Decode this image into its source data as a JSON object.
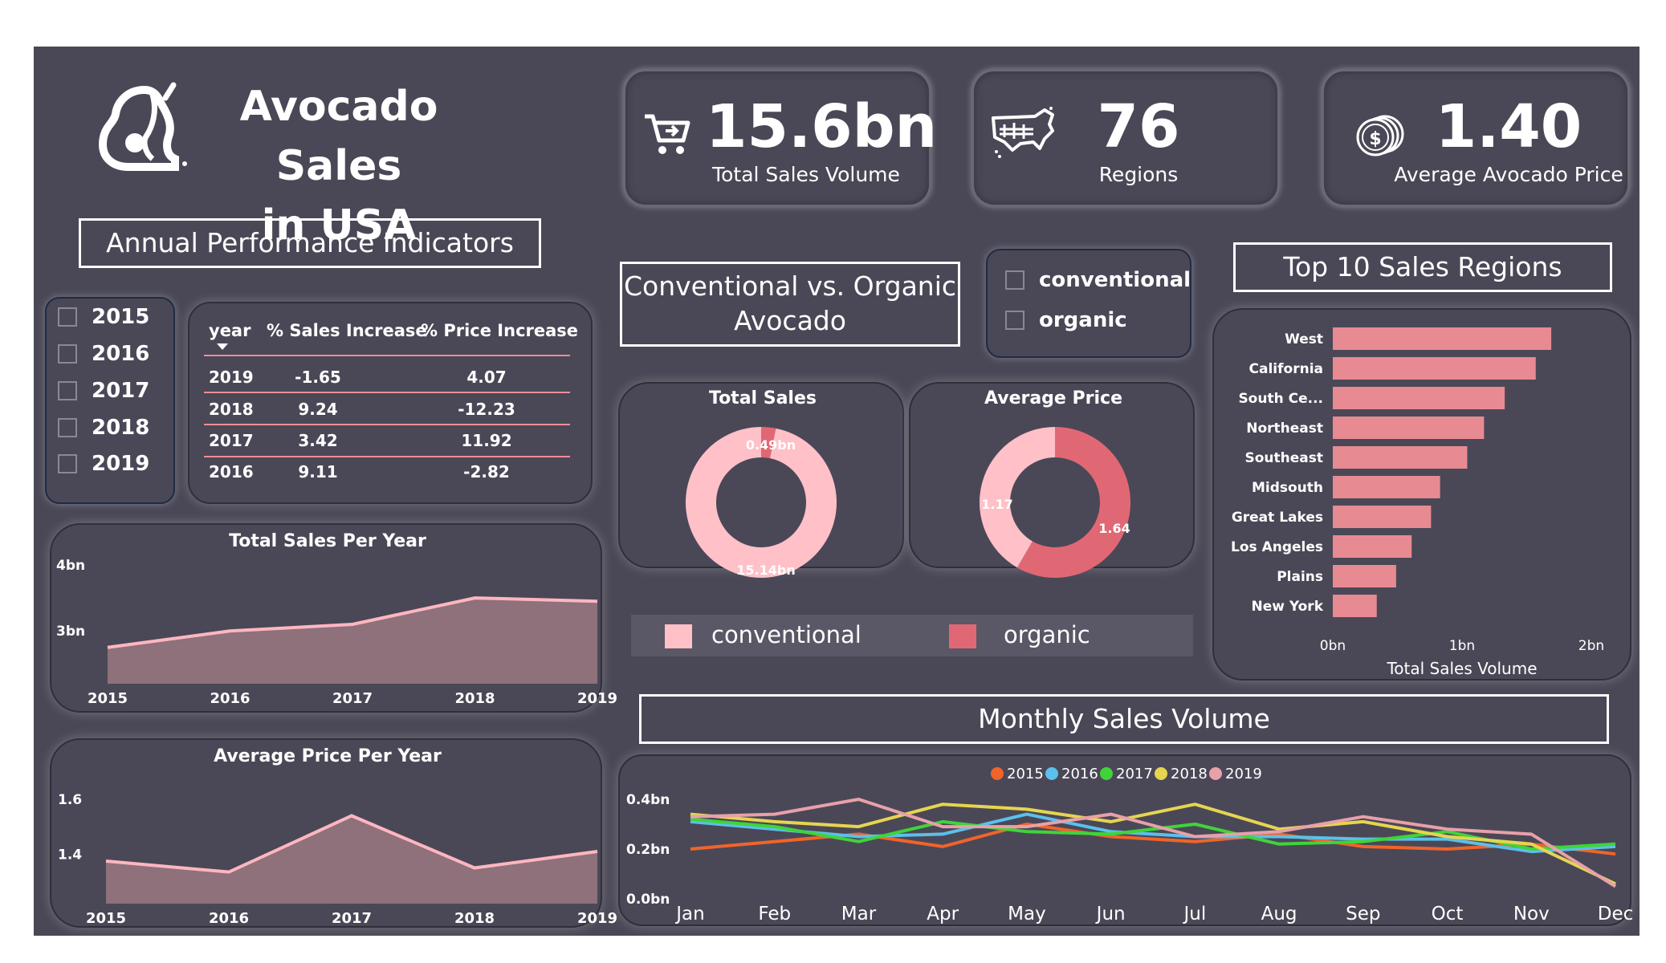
{
  "header": {
    "title_line1": "Avocado Sales",
    "title_line2": "in USA",
    "logo_icon": "avocado-icon"
  },
  "kpis": [
    {
      "value": "15.6bn",
      "label": "Total Sales Volume",
      "icon": "cart-icon"
    },
    {
      "value": "76",
      "label": "Regions",
      "icon": "usa-map-icon"
    },
    {
      "value": "1.40",
      "label": "Average Avocado Price",
      "icon": "coins-icon"
    }
  ],
  "section_titles": {
    "annual": "Annual Performance Indicators",
    "conv_org_1": "Conventional vs. Organic",
    "conv_org_2": "Avocado",
    "top10": "Top 10 Sales Regions",
    "monthly": "Monthly Sales Volume"
  },
  "year_slicer": [
    "2015",
    "2016",
    "2017",
    "2018",
    "2019"
  ],
  "type_slicer": [
    "conventional",
    "organic"
  ],
  "table": {
    "headers": [
      "year",
      "% Sales Increase",
      "% Price Increase"
    ],
    "rows": [
      [
        "2019",
        "-1.65",
        "4.07"
      ],
      [
        "2018",
        "9.24",
        "-12.23"
      ],
      [
        "2017",
        "3.42",
        "11.92"
      ],
      [
        "2016",
        "9.11",
        "-2.82"
      ]
    ]
  },
  "colors": {
    "conventional": "#ffc0c8",
    "organic": "#e06874",
    "area_fill": "#8e717a",
    "area_line": "#ffb6c1",
    "bar": "#e88a92",
    "background": "#4a4856"
  },
  "donut_legend": [
    "conventional",
    "organic"
  ],
  "chart_data": [
    {
      "id": "total-sales-per-year",
      "type": "area",
      "title": "Total Sales Per Year",
      "x": [
        "2015",
        "2016",
        "2017",
        "2018",
        "2019"
      ],
      "values": [
        2.75,
        3.0,
        3.1,
        3.5,
        3.45
      ],
      "ylim": [
        2.2,
        4.0
      ],
      "yticks": [
        {
          "v": 4.0,
          "label": "4bn"
        },
        {
          "v": 3.0,
          "label": "3bn"
        }
      ]
    },
    {
      "id": "average-price-per-year",
      "type": "area",
      "title": "Average Price Per Year",
      "x": [
        "2015",
        "2016",
        "2017",
        "2018",
        "2019"
      ],
      "values": [
        1.375,
        1.335,
        1.54,
        1.35,
        1.41
      ],
      "ylim": [
        1.22,
        1.67
      ],
      "yticks": [
        {
          "v": 1.6,
          "label": "1.6"
        },
        {
          "v": 1.4,
          "label": "1.4"
        }
      ]
    },
    {
      "id": "total-sales-donut",
      "type": "pie",
      "title": "Total Sales",
      "categories": [
        "conventional",
        "organic"
      ],
      "values": [
        15.14,
        0.49
      ],
      "labels": [
        "15.14bn",
        "0.49bn"
      ]
    },
    {
      "id": "average-price-donut",
      "type": "pie",
      "title": "Average Price",
      "categories": [
        "conventional",
        "organic"
      ],
      "values": [
        1.17,
        1.64
      ],
      "labels": [
        "1.17",
        "1.64"
      ]
    },
    {
      "id": "top-10-regions",
      "type": "bar",
      "orientation": "horizontal",
      "categories": [
        "West",
        "California",
        "South Ce...",
        "Northeast",
        "Southeast",
        "Midsouth",
        "Great Lakes",
        "Los Angeles",
        "Plains",
        "New York"
      ],
      "values": [
        1.69,
        1.57,
        1.33,
        1.17,
        1.04,
        0.83,
        0.76,
        0.61,
        0.49,
        0.34
      ],
      "xlim": [
        0,
        2
      ],
      "xticks": [
        "0bn",
        "1bn",
        "2bn"
      ],
      "xlabel": "Total Sales Volume"
    },
    {
      "id": "monthly-sales-volume",
      "type": "line",
      "x": [
        "Jan",
        "Feb",
        "Mar",
        "Apr",
        "May",
        "Jun",
        "Jul",
        "Aug",
        "Sep",
        "Oct",
        "Nov",
        "Dec"
      ],
      "ylim": [
        0,
        0.4
      ],
      "yticks": [
        "0.0bn",
        "0.2bn",
        "0.4bn"
      ],
      "series": [
        {
          "name": "2015",
          "color": "#f0642a",
          "values": [
            0.2,
            0.23,
            0.26,
            0.21,
            0.3,
            0.25,
            0.23,
            0.26,
            0.21,
            0.2,
            0.22,
            0.18
          ]
        },
        {
          "name": "2016",
          "color": "#5bc0eb",
          "values": [
            0.31,
            0.28,
            0.25,
            0.26,
            0.34,
            0.27,
            0.25,
            0.25,
            0.24,
            0.24,
            0.19,
            0.21
          ]
        },
        {
          "name": "2017",
          "color": "#3fd43a",
          "values": [
            0.32,
            0.29,
            0.23,
            0.31,
            0.27,
            0.26,
            0.3,
            0.22,
            0.23,
            0.27,
            0.2,
            0.22
          ]
        },
        {
          "name": "2018",
          "color": "#e5d550",
          "values": [
            0.34,
            0.31,
            0.29,
            0.38,
            0.36,
            0.31,
            0.38,
            0.28,
            0.31,
            0.25,
            0.22,
            0.06
          ]
        },
        {
          "name": "2019",
          "color": "#e8a0aa",
          "values": [
            0.33,
            0.34,
            0.4,
            0.29,
            0.29,
            0.34,
            0.25,
            0.27,
            0.33,
            0.28,
            0.26,
            0.05
          ]
        }
      ]
    }
  ]
}
